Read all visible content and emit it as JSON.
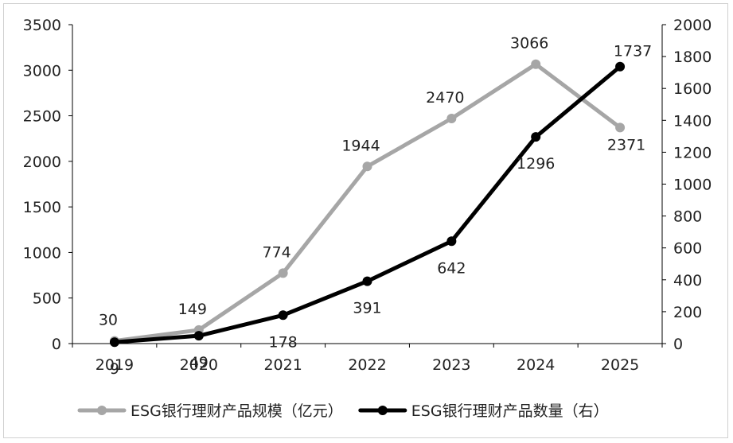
{
  "chart_data": {
    "type": "line",
    "x": [
      "2019",
      "2020",
      "2021",
      "2022",
      "2023",
      "2024",
      "2025"
    ],
    "series": [
      {
        "name": "ESG银行理财产品规模（亿元）",
        "axis": "left",
        "color": "#a6a6a6",
        "values": [
          30,
          149,
          774,
          1944,
          2470,
          3066,
          2371
        ]
      },
      {
        "name": "ESG银行理财产品数量（右）",
        "axis": "right",
        "color": "#000000",
        "values": [
          9,
          49,
          178,
          391,
          642,
          1296,
          1737
        ]
      }
    ],
    "y_left": {
      "min": 0,
      "max": 3500,
      "ticks": [
        "0",
        "500",
        "1000",
        "1500",
        "2000",
        "2500",
        "3000",
        "3500"
      ]
    },
    "y_right": {
      "min": 0,
      "max": 2000,
      "ticks": [
        "0",
        "200",
        "400",
        "600",
        "800",
        "1000",
        "1200",
        "1400",
        "1600",
        "1800",
        "2000"
      ]
    },
    "grid": false,
    "legend_position": "bottom"
  }
}
